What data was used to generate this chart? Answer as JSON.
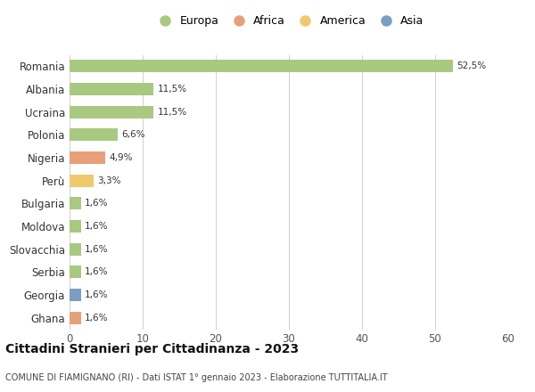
{
  "categories": [
    "Romania",
    "Albania",
    "Ucraina",
    "Polonia",
    "Nigeria",
    "Perù",
    "Bulgaria",
    "Moldova",
    "Slovacchia",
    "Serbia",
    "Georgia",
    "Ghana"
  ],
  "values": [
    52.5,
    11.5,
    11.5,
    6.6,
    4.9,
    3.3,
    1.6,
    1.6,
    1.6,
    1.6,
    1.6,
    1.6
  ],
  "labels": [
    "52,5%",
    "11,5%",
    "11,5%",
    "6,6%",
    "4,9%",
    "3,3%",
    "1,6%",
    "1,6%",
    "1,6%",
    "1,6%",
    "1,6%",
    "1,6%"
  ],
  "colors": [
    "#a8c97f",
    "#a8c97f",
    "#a8c97f",
    "#a8c97f",
    "#e8a07a",
    "#f0c96e",
    "#a8c97f",
    "#a8c97f",
    "#a8c97f",
    "#a8c97f",
    "#7a9fc0",
    "#e8a07a"
  ],
  "legend_labels": [
    "Europa",
    "Africa",
    "America",
    "Asia"
  ],
  "legend_colors": [
    "#a8c97f",
    "#e8a07a",
    "#f0c96e",
    "#7a9fc0"
  ],
  "title": "Cittadini Stranieri per Cittadinanza - 2023",
  "subtitle": "COMUNE DI FIAMIGNANO (RI) - Dati ISTAT 1° gennaio 2023 - Elaborazione TUTTITALIA.IT",
  "xlim": [
    0,
    60
  ],
  "xticks": [
    0,
    10,
    20,
    30,
    40,
    50,
    60
  ],
  "background_color": "#ffffff",
  "grid_color": "#d0d0d0",
  "bar_height": 0.55
}
